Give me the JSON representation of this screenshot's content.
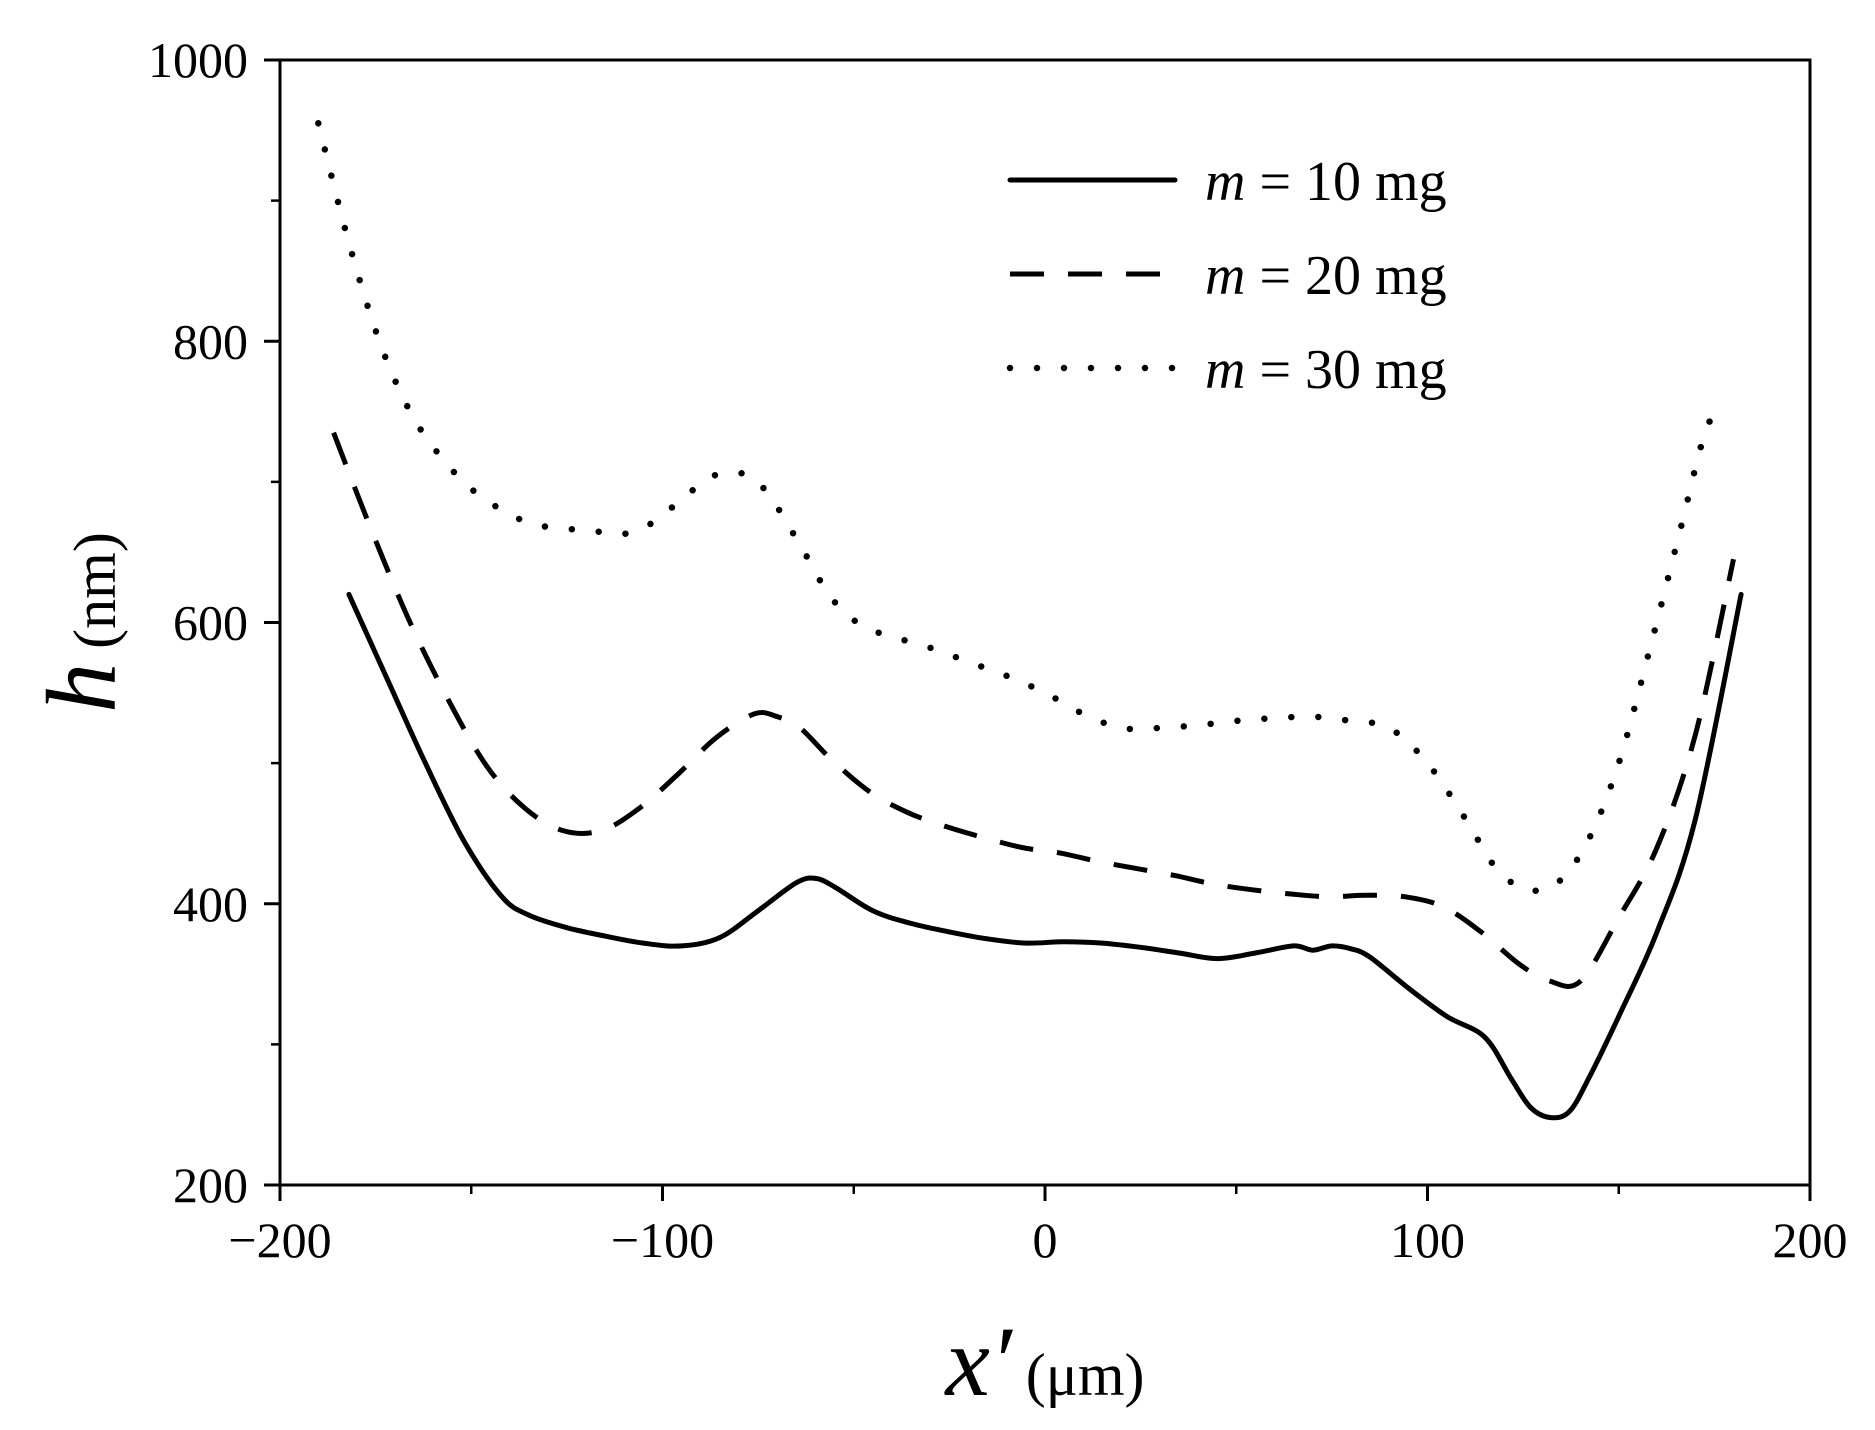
{
  "chart_data": {
    "type": "line",
    "title": "",
    "xlabel": {
      "symbol": "x′",
      "unit": "(μm)"
    },
    "ylabel": {
      "symbol": "h",
      "unit": "(nm)"
    },
    "xlim": [
      -200,
      200
    ],
    "ylim": [
      200,
      1000
    ],
    "x_ticks": [
      -200,
      -100,
      0,
      100,
      200
    ],
    "x_tick_labels": [
      "−200",
      "−100",
      "0",
      "100",
      "200"
    ],
    "y_ticks": [
      200,
      400,
      600,
      800,
      1000
    ],
    "y_tick_labels": [
      "200",
      "400",
      "600",
      "800",
      "1000"
    ],
    "legend_position": "top-right",
    "grid": false,
    "series": [
      {
        "name": "m = 10 mg",
        "label_var": "m",
        "label_rest": " = 10 mg",
        "style": "solid",
        "color": "#000000",
        "x": [
          -182,
          -172,
          -162,
          -152,
          -142,
          -135,
          -125,
          -115,
          -105,
          -95,
          -85,
          -75,
          -65,
          -60,
          -55,
          -45,
          -35,
          -25,
          -15,
          -5,
          5,
          15,
          25,
          35,
          45,
          55,
          65,
          70,
          75,
          80,
          85,
          95,
          105,
          115,
          122,
          127,
          132,
          137,
          142,
          150,
          160,
          170,
          182
        ],
        "y": [
          620,
          560,
          500,
          445,
          405,
          392,
          383,
          377,
          372,
          370,
          376,
          395,
          415,
          418,
          412,
          395,
          386,
          380,
          375,
          372,
          373,
          372,
          369,
          365,
          361,
          365,
          370,
          367,
          370,
          368,
          362,
          340,
          320,
          305,
          275,
          255,
          248,
          252,
          275,
          320,
          380,
          460,
          620
        ]
      },
      {
        "name": "m = 20 mg",
        "label_var": "m",
        "label_rest": " = 20 mg",
        "style": "dashed",
        "color": "#000000",
        "x": [
          -186,
          -176,
          -166,
          -156,
          -146,
          -136,
          -126,
          -116,
          -106,
          -96,
          -86,
          -76,
          -70,
          -64,
          -56,
          -46,
          -36,
          -26,
          -16,
          -6,
          4,
          14,
          24,
          34,
          44,
          54,
          64,
          74,
          84,
          94,
          104,
          114,
          124,
          132,
          140,
          150,
          160,
          170,
          180
        ],
        "y": [
          735,
          665,
          600,
          545,
          498,
          468,
          452,
          452,
          468,
          492,
          518,
          535,
          533,
          525,
          503,
          480,
          465,
          455,
          447,
          440,
          436,
          430,
          425,
          420,
          414,
          410,
          407,
          405,
          406,
          405,
          398,
          380,
          357,
          345,
          345,
          390,
          440,
          520,
          645
        ]
      },
      {
        "name": "m = 30 mg",
        "label_var": "m",
        "label_rest": " = 30 mg",
        "style": "dotted",
        "color": "#000000",
        "x": [
          -190,
          -182,
          -174,
          -166,
          -158,
          -150,
          -142,
          -134,
          -126,
          -118,
          -110,
          -102,
          -94,
          -86,
          -78,
          -72,
          -64,
          -56,
          -48,
          -40,
          -30,
          -20,
          -10,
          0,
          10,
          20,
          30,
          40,
          50,
          60,
          70,
          80,
          90,
          100,
          110,
          118,
          126,
          134,
          142,
          150,
          158,
          166,
          172,
          176
        ],
        "y": [
          955,
          870,
          800,
          750,
          718,
          695,
          680,
          670,
          667,
          665,
          663,
          672,
          690,
          705,
          705,
          690,
          655,
          618,
          598,
          590,
          582,
          572,
          562,
          550,
          535,
          525,
          525,
          527,
          530,
          532,
          533,
          530,
          525,
          500,
          460,
          425,
          410,
          415,
          445,
          500,
          580,
          665,
          730,
          755
        ]
      }
    ]
  }
}
